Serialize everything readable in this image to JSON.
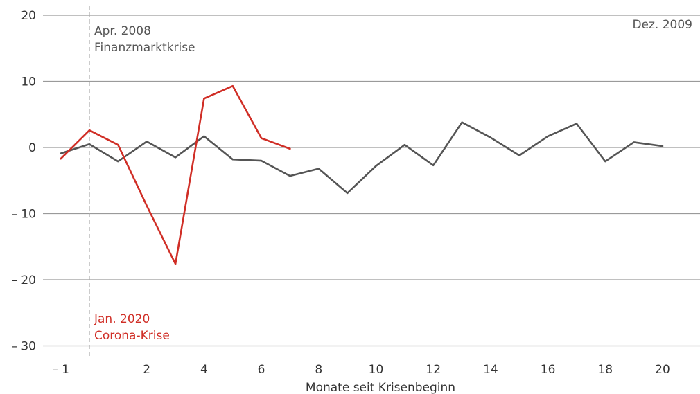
{
  "chart_data": {
    "type": "line",
    "xlabel": "Monate seit Krisenbeginn",
    "ylabel": "",
    "xlim": [
      -1.5,
      21
    ],
    "ylim": [
      -30,
      20
    ],
    "x_ticks": [
      {
        "value": -1,
        "label": "– 1"
      },
      {
        "value": 2,
        "label": "2"
      },
      {
        "value": 4,
        "label": "4"
      },
      {
        "value": 6,
        "label": "6"
      },
      {
        "value": 8,
        "label": "8"
      },
      {
        "value": 10,
        "label": "10"
      },
      {
        "value": 12,
        "label": "12"
      },
      {
        "value": 14,
        "label": "14"
      },
      {
        "value": 16,
        "label": "16"
      },
      {
        "value": 18,
        "label": "18"
      },
      {
        "value": 20,
        "label": "20"
      }
    ],
    "y_ticks": [
      {
        "value": 20,
        "label": "20"
      },
      {
        "value": 10,
        "label": "10"
      },
      {
        "value": 0,
        "label": "0"
      },
      {
        "value": -10,
        "label": "– 10"
      },
      {
        "value": -20,
        "label": "– 20"
      },
      {
        "value": -30,
        "label": "– 30"
      }
    ],
    "grid": true,
    "reference_line": {
      "x": 0
    },
    "series": [
      {
        "color": "#555555",
        "x": [
          -1,
          0,
          1,
          2,
          3,
          4,
          5,
          6,
          7,
          8,
          9,
          10,
          11,
          12,
          13,
          14,
          15,
          16,
          17,
          18,
          19,
          20
        ],
        "y": [
          -0.9,
          0.5,
          -2.1,
          0.9,
          -1.5,
          1.7,
          -1.8,
          -2.0,
          -4.3,
          -3.2,
          -6.9,
          -2.8,
          0.4,
          -2.7,
          3.8,
          1.5,
          -1.2,
          1.7,
          3.6,
          -2.1,
          0.8,
          0.2
        ]
      },
      {
        "color": "#d02e26",
        "x": [
          -1,
          0,
          1,
          2,
          3,
          4,
          5,
          6,
          7
        ],
        "y": [
          -1.7,
          2.6,
          0.4,
          -8.8,
          -17.6,
          7.4,
          9.3,
          1.4,
          -0.2
        ]
      }
    ],
    "annotations": [
      {
        "id": "fin",
        "lines": [
          "Apr. 2008",
          "Finanzmarktkrise"
        ],
        "color": "#555555"
      },
      {
        "id": "corona",
        "lines": [
          "Jan. 2020",
          "Corona-Krise"
        ],
        "color": "#d02e26"
      },
      {
        "id": "end",
        "lines": [
          "Dez. 2009"
        ],
        "color": "#555555"
      }
    ]
  }
}
